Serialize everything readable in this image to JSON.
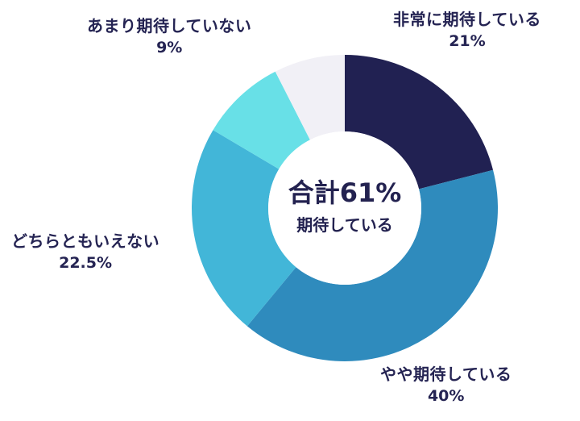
{
  "chart_data": {
    "type": "pie",
    "variant": "donut",
    "title": "",
    "center_label": {
      "total": "合計61%",
      "subtitle": "期待している"
    },
    "categories": [
      "非常に期待している",
      "やや期待している",
      "どちらともいえない",
      "あまり期待していない",
      ""
    ],
    "values": [
      21,
      40,
      22.5,
      9,
      7.5
    ],
    "colors": [
      "#212152",
      "#2f8bbd",
      "#42b6d8",
      "#68e0e7",
      "#f1f0f6"
    ],
    "start_angle_deg": 0,
    "direction": "clockwise",
    "legend": "none (direct labels)"
  },
  "labels": [
    {
      "name": "非常に期待している",
      "pct": "21%"
    },
    {
      "name": "やや期待している",
      "pct": "40%"
    },
    {
      "name": "どちらともいえない",
      "pct": "22.5%"
    },
    {
      "name": "あまり期待していない",
      "pct": "9%"
    }
  ]
}
